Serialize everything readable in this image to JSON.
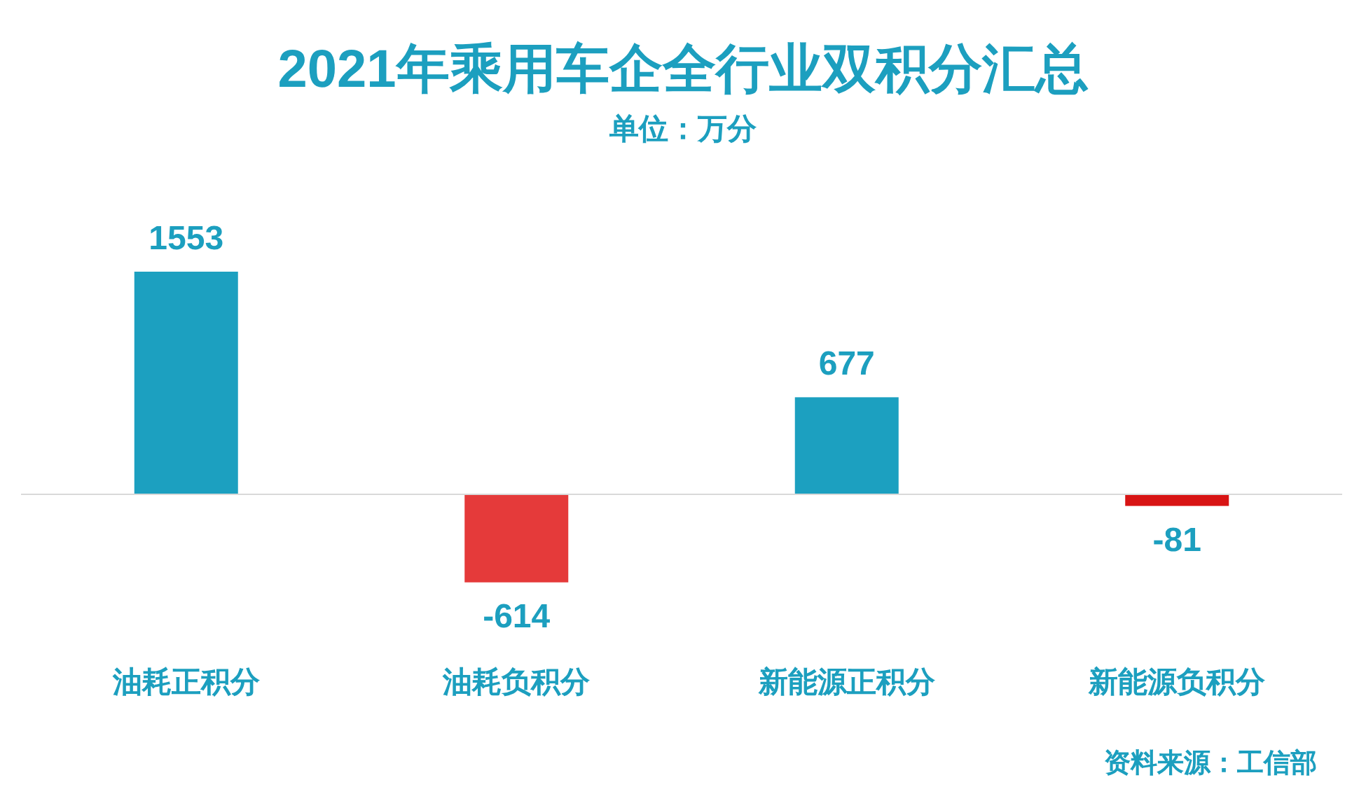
{
  "chart_data": {
    "type": "bar",
    "title": "2021年乘用车企全行业双积分汇总",
    "subtitle": "单位：万分",
    "categories": [
      "油耗正积分",
      "油耗负积分",
      "新能源正积分",
      "新能源负积分"
    ],
    "values": [
      1553,
      -614,
      677,
      -81
    ],
    "colors": [
      "#1ca0c0",
      "#e53a3a",
      "#1ca0c0",
      "#d81414"
    ],
    "data_labels": true,
    "annotations": [
      "资料来源：工信部"
    ]
  }
}
